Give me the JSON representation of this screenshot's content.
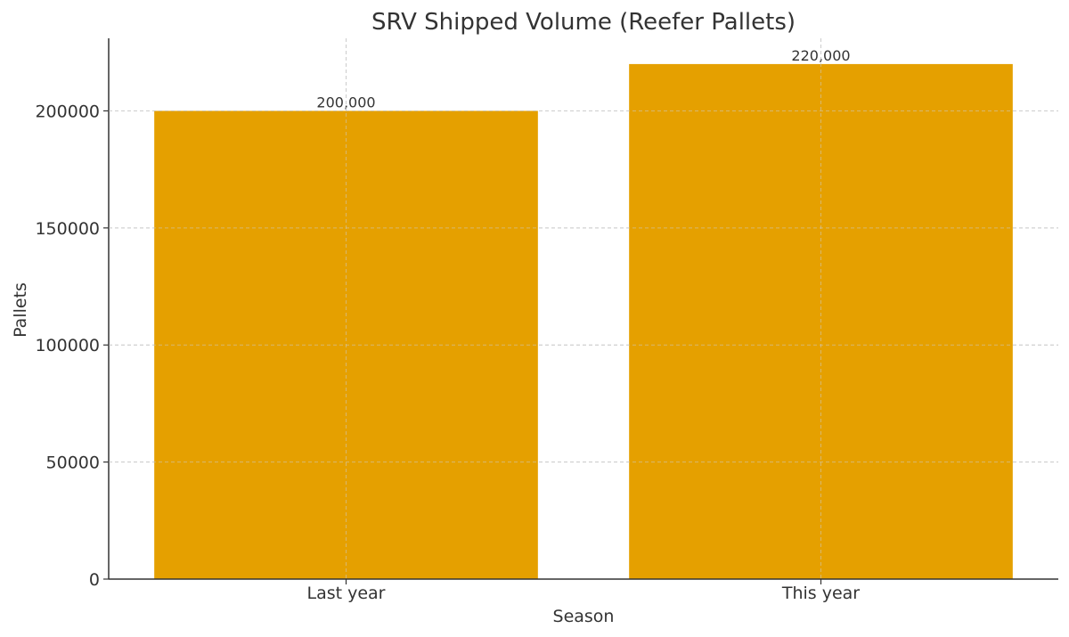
{
  "chart_data": {
    "type": "bar",
    "title": "SRV Shipped Volume (Reefer Pallets)",
    "xlabel": "Season",
    "ylabel": "Pallets",
    "categories": [
      "Last year",
      "This year"
    ],
    "values": [
      200000,
      220000
    ],
    "data_labels": [
      "200,000",
      "220,000"
    ],
    "y_ticks": [
      0,
      50000,
      100000,
      150000,
      200000
    ],
    "y_tick_labels": [
      "0",
      "50000",
      "100000",
      "150000",
      "200000"
    ],
    "ylim": [
      0,
      231000
    ],
    "bar_color": "#E5A000",
    "grid": true
  }
}
